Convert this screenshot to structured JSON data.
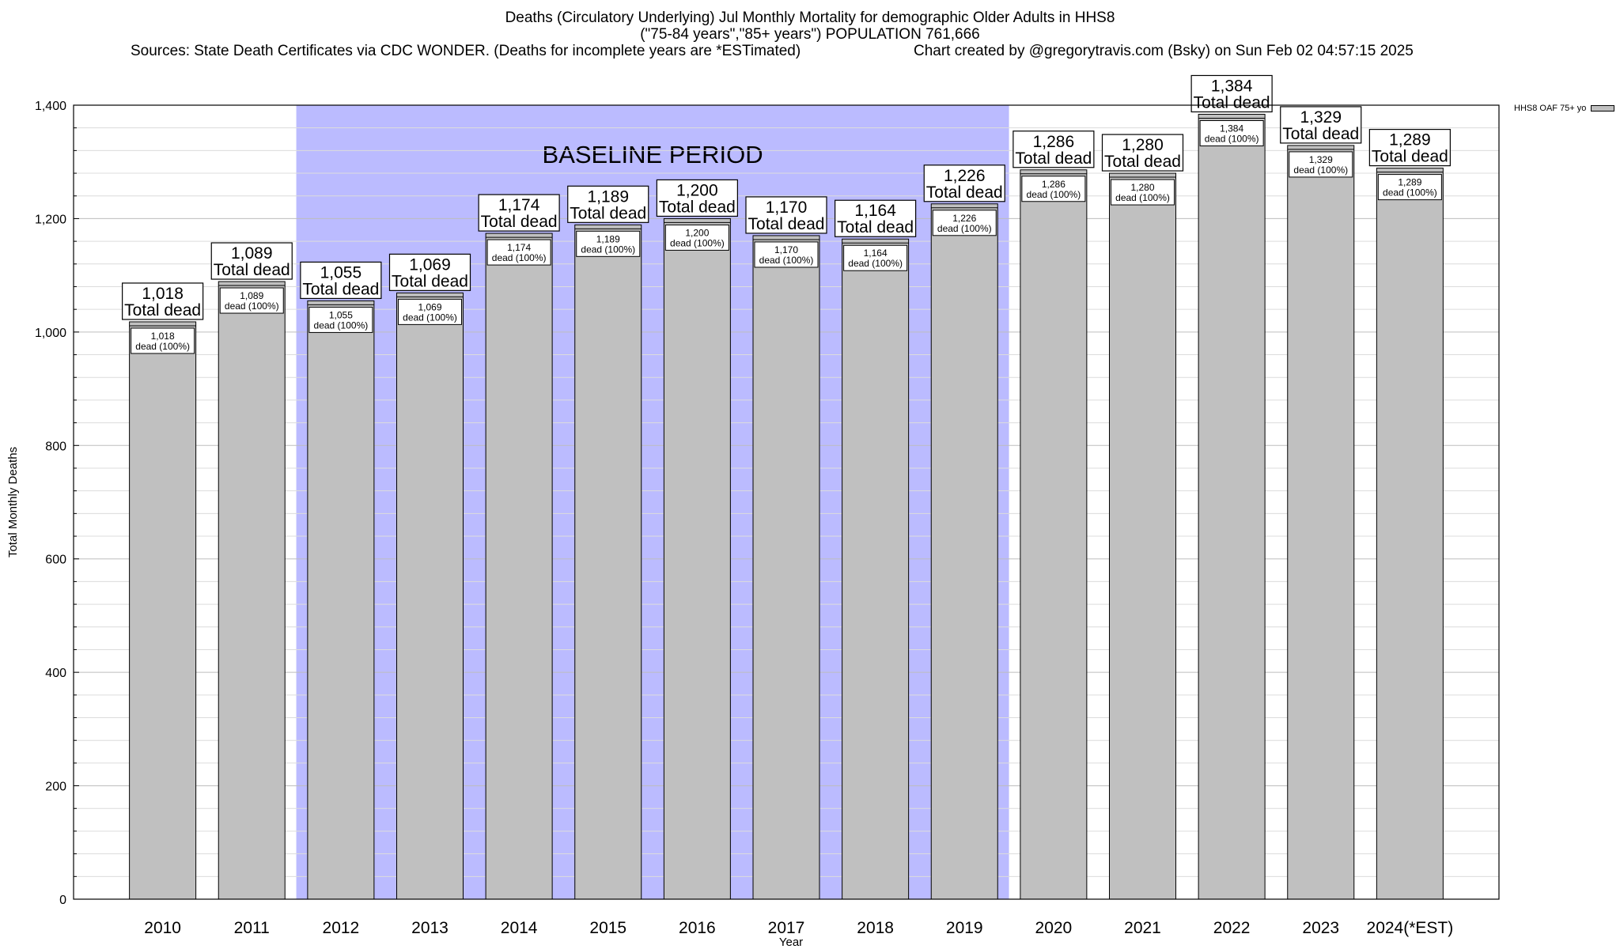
{
  "title_lines": [
    "Deaths (Circulatory Underlying) Jul Monthly Mortality for demographic Older Adults in HHS8",
    "(\"75-84 years\",\"85+ years\") POPULATION 761,666"
  ],
  "source_left": "Sources: State Death Certificates via CDC WONDER. (Deaths for incomplete years are *ESTimated)",
  "source_right": "Chart created by @gregorytravis.com (Bsky) on Sun Feb 02 04:57:15 2025",
  "chart_data": {
    "type": "bar",
    "categories": [
      "2010",
      "2011",
      "2012",
      "2013",
      "2014",
      "2015",
      "2016",
      "2017",
      "2018",
      "2019",
      "2020",
      "2021",
      "2022",
      "2023",
      "2024(*EST)"
    ],
    "values": [
      1018,
      1089,
      1055,
      1069,
      1174,
      1189,
      1200,
      1170,
      1164,
      1226,
      1286,
      1280,
      1384,
      1329,
      1289
    ],
    "value_labels": [
      "1,018",
      "1,089",
      "1,055",
      "1,069",
      "1,174",
      "1,189",
      "1,200",
      "1,170",
      "1,164",
      "1,226",
      "1,286",
      "1,280",
      "1,384",
      "1,329",
      "1,289"
    ],
    "total_suffix": "Total dead",
    "inner_suffix": "dead (100%)",
    "xlabel": "Year",
    "ylabel": "Total Monthly Deaths",
    "ylim": [
      0,
      1400
    ],
    "yticks": [
      0,
      200,
      400,
      600,
      800,
      1000,
      1200,
      1400
    ],
    "ytick_labels": [
      "0",
      "200",
      "400",
      "600",
      "800",
      "1,000",
      "1,200",
      "1,400"
    ],
    "minor_tick_step": 40,
    "baseline_period": {
      "label": "BASELINE PERIOD",
      "start": "2012",
      "end": "2019",
      "color": "#bbbbff"
    },
    "bar_color": "#c0c0c0",
    "grid": true,
    "legend": {
      "placement": "right",
      "entries": [
        "HHS8 OAF 75+ yo"
      ]
    }
  }
}
